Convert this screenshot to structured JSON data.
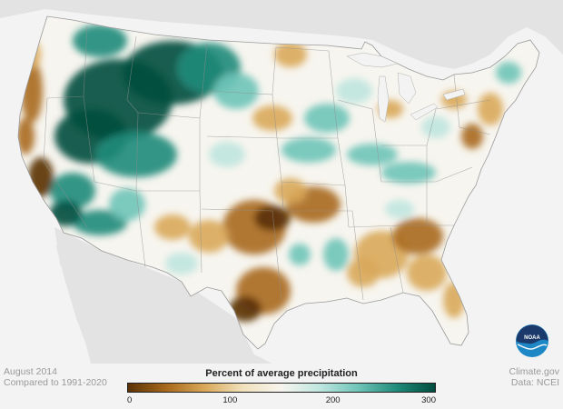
{
  "map": {
    "region": "contiguous United States",
    "variable": "percent of average precipitation",
    "pattern_notes": [
      "Much wetter than average across northern Rockies, Great Basin and northern High Plains",
      "Wet streak along the southwestern deserts of Arizona and southern California",
      "Drier than average along the West Coast and in California's Central Valley",
      "Drier than average across central/southern Plains, Texas and the Southeast",
      "Mixed wet and dry patches across the Midwest and Northeast"
    ]
  },
  "legend": {
    "title": "Percent of average precipitation",
    "ticks": [
      {
        "label": "0",
        "value": 0
      },
      {
        "label": "100",
        "value": 100
      },
      {
        "label": "200",
        "value": 200
      },
      {
        "label": "300",
        "value": 300
      }
    ],
    "range": [
      0,
      300
    ],
    "colors": [
      "#5a3207",
      "#a8691c",
      "#d9a85a",
      "#f1e2bd",
      "#f7f5ef",
      "#bfe6df",
      "#6fc4b8",
      "#1f8b7a",
      "#004c3f"
    ]
  },
  "notes": {
    "month": "August 2014",
    "baseline": "Compared to 1991-2020"
  },
  "credits": {
    "site": "Climate.gov",
    "data": "Data: NCEI"
  },
  "logo": {
    "text": "NOAA",
    "colors": {
      "dark": "#1b3a6b",
      "light": "#1e88c7"
    }
  },
  "colors": {
    "background": "#f3f3f3",
    "land_outside": "#e3e3e3",
    "neutral_fill": "#f7f5ef",
    "state_line": "#8f8f8f"
  }
}
